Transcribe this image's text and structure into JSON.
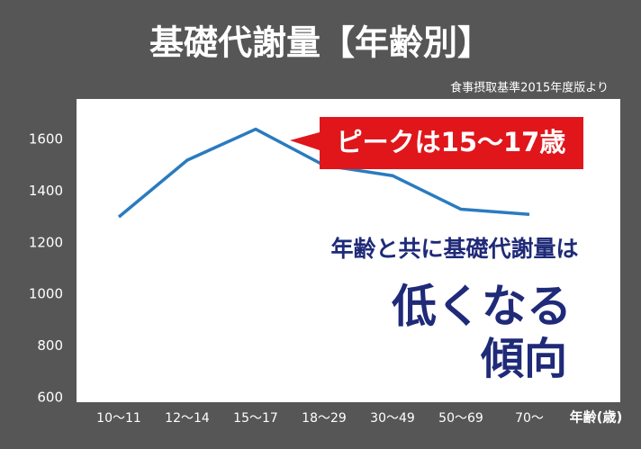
{
  "chart_data": {
    "type": "line",
    "title": "基礎代謝量【年齢別】",
    "subtitle": "食事摂取基準2015年度版より",
    "x_label": "年齢(歳)",
    "categories": [
      "10～11",
      "12～14",
      "15～17",
      "18～29",
      "30～49",
      "50～69",
      "70～"
    ],
    "values": [
      1300,
      1520,
      1640,
      1500,
      1460,
      1330,
      1310
    ],
    "color": "#2a7bbf",
    "ylim": [
      600,
      1750
    ],
    "yticks": [
      600,
      800,
      1000,
      1200,
      1400,
      1600
    ],
    "grid": false,
    "annotations": [
      "ピークは15～17歳",
      "年齢と共に基礎代謝量は",
      "低くなる",
      "傾向"
    ]
  }
}
